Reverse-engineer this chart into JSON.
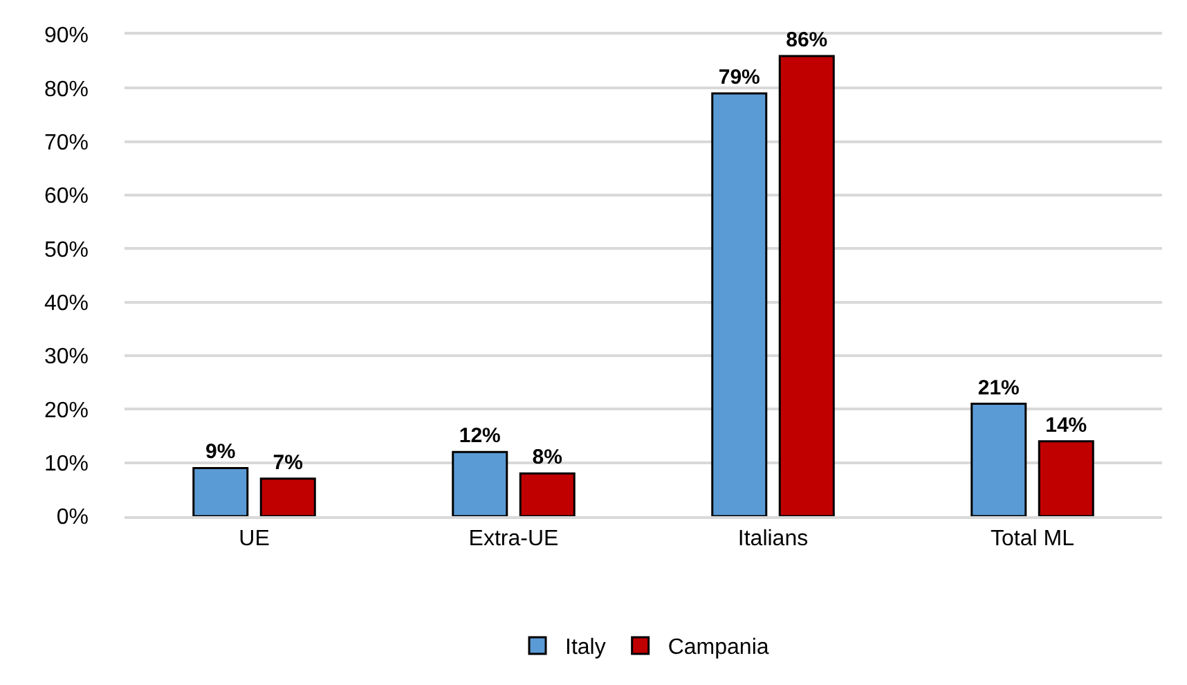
{
  "chart_data": {
    "type": "bar",
    "categories": [
      "UE",
      "Extra-UE",
      "Italians",
      "Total ML"
    ],
    "series": [
      {
        "name": "Italy",
        "color": "#5b9bd5",
        "values": [
          9,
          12,
          79,
          21
        ],
        "value_labels": [
          "9%",
          "12%",
          "79%",
          "21%"
        ]
      },
      {
        "name": "Campania",
        "color": "#c00000",
        "values": [
          7,
          8,
          86,
          14
        ],
        "value_labels": [
          "7%",
          "8%",
          "86%",
          "14%"
        ]
      }
    ],
    "ylim": [
      0,
      90
    ],
    "yticks": [
      {
        "value": 0,
        "label": "0%"
      },
      {
        "value": 10,
        "label": "10%"
      },
      {
        "value": 20,
        "label": "20%"
      },
      {
        "value": 30,
        "label": "30%"
      },
      {
        "value": 40,
        "label": "40%"
      },
      {
        "value": 50,
        "label": "50%"
      },
      {
        "value": 60,
        "label": "60%"
      },
      {
        "value": 70,
        "label": "70%"
      },
      {
        "value": 80,
        "label": "80%"
      },
      {
        "value": 90,
        "label": "90%"
      }
    ],
    "grid": "y",
    "legend": "bottom"
  }
}
